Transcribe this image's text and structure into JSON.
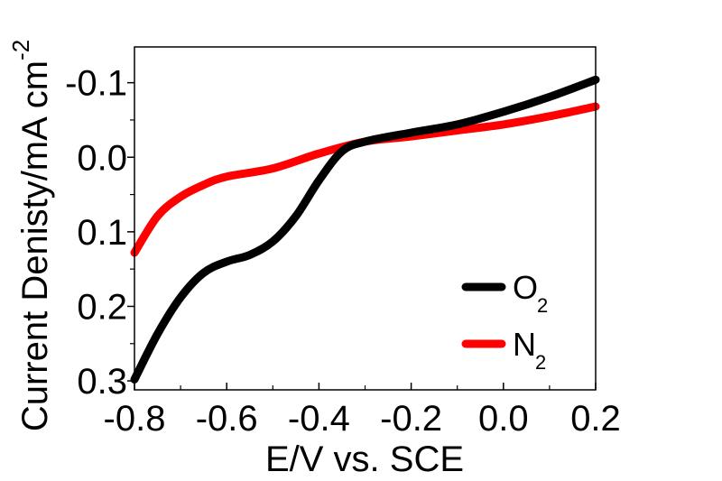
{
  "chart_data": {
    "type": "line",
    "title": "",
    "xlabel": "E/V vs. SCE",
    "ylabel": "Current Denisty/mA cm",
    "ylabel_superscript": "-2",
    "xlim": [
      -0.8,
      0.2
    ],
    "ylim": [
      0.312,
      -0.148
    ],
    "y_inverted": true,
    "grid": false,
    "xticks": [
      -0.8,
      -0.6,
      -0.4,
      -0.2,
      0.0,
      0.2
    ],
    "xtick_labels": [
      "-0.8",
      "-0.6",
      "-0.4",
      "-0.2",
      "0.0",
      "0.2"
    ],
    "yticks": [
      -0.1,
      0.0,
      0.1,
      0.2,
      0.3
    ],
    "ytick_labels": [
      "-0.1",
      "0.0",
      "0.1",
      "0.2",
      "0.3"
    ],
    "legend_position": "bottom-right",
    "series": [
      {
        "name": "O",
        "name_subscript": "2",
        "color": "#000000",
        "x": [
          -0.8,
          -0.75,
          -0.7,
          -0.65,
          -0.6,
          -0.55,
          -0.5,
          -0.45,
          -0.4,
          -0.35,
          -0.3,
          -0.2,
          -0.1,
          0.0,
          0.1,
          0.2
        ],
        "y": [
          0.298,
          0.237,
          0.188,
          0.155,
          0.14,
          0.131,
          0.113,
          0.079,
          0.031,
          -0.008,
          -0.021,
          -0.033,
          -0.044,
          -0.061,
          -0.081,
          -0.104
        ]
      },
      {
        "name": "N",
        "name_subscript": "2",
        "color": "#ff0000",
        "x": [
          -0.8,
          -0.75,
          -0.7,
          -0.65,
          -0.6,
          -0.5,
          -0.4,
          -0.3,
          -0.2,
          -0.1,
          0.0,
          0.1,
          0.2
        ],
        "y": [
          0.128,
          0.079,
          0.053,
          0.037,
          0.026,
          0.015,
          -0.005,
          -0.021,
          -0.028,
          -0.036,
          -0.044,
          -0.055,
          -0.068
        ]
      }
    ]
  }
}
